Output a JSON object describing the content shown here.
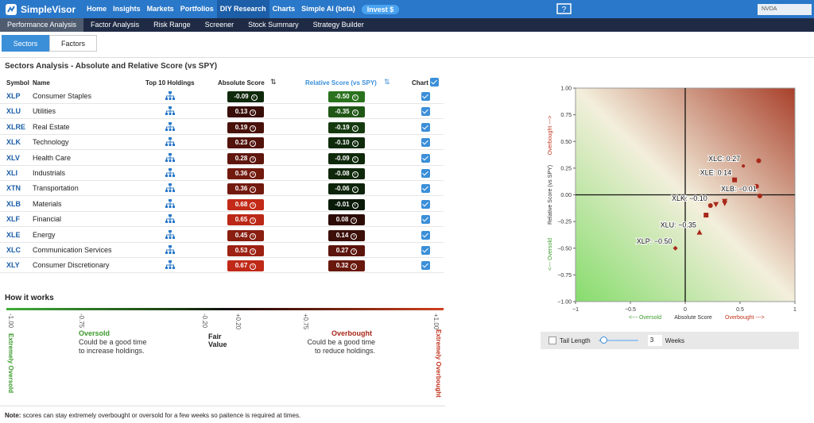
{
  "nav": {
    "brand": "SimpleVisor",
    "items": [
      "Home",
      "Insights",
      "Markets",
      "Portfolios",
      "DIY Research",
      "Charts",
      "Simple AI (beta)"
    ],
    "invest": "Invest $",
    "search": "NVDA"
  },
  "subnav": [
    "Performance Analysis",
    "Factor Analysis",
    "Risk Range",
    "Screener",
    "Stock Summary",
    "Strategy Builder"
  ],
  "tabs": [
    "Sectors",
    "Factors"
  ],
  "section_title": "Sectors Analysis - Absolute and Relative Score (vs SPY)",
  "table": {
    "headers": [
      "Symbol",
      "Name",
      "Top 10 Holdings",
      "Absolute Score",
      "Relative Score (vs SPY)",
      "Chart"
    ],
    "rows": [
      [
        "XLP",
        "Consumer Staples",
        "-0.09",
        "-0.50"
      ],
      [
        "XLU",
        "Utilities",
        "0.13",
        "-0.35"
      ],
      [
        "XLRE",
        "Real Estate",
        "0.19",
        "-0.19"
      ],
      [
        "XLK",
        "Technology",
        "0.23",
        "-0.10"
      ],
      [
        "XLV",
        "Health Care",
        "0.28",
        "-0.09"
      ],
      [
        "XLI",
        "Industrials",
        "0.36",
        "-0.08"
      ],
      [
        "XTN",
        "Transportation",
        "0.36",
        "-0.06"
      ],
      [
        "XLB",
        "Materials",
        "0.68",
        "-0.01"
      ],
      [
        "XLF",
        "Financial",
        "0.65",
        "0.08"
      ],
      [
        "XLE",
        "Energy",
        "0.45",
        "0.14"
      ],
      [
        "XLC",
        "Communication Services",
        "0.53",
        "0.27"
      ],
      [
        "XLY",
        "Consumer Discretionary",
        "0.67",
        "0.32"
      ]
    ]
  },
  "how": {
    "title": "How it works",
    "ticks": [
      "-1.00",
      "-0.75",
      "-0.20",
      "+0.20",
      "+0.75",
      "+1.00"
    ],
    "extreme_low": "Extremely Oversold",
    "oversold": "Oversold",
    "oversold_text": "Could be a good time to increase holdings.",
    "fair": "Fair Value",
    "overbought": "Overbought",
    "overbought_text": "Could be a good time to reduce holdings.",
    "extreme_high": "Extremely Overbought"
  },
  "note": {
    "label": "Note:",
    "text": "scores can stay extremely overbought or oversold for a few weeks so paitence is required at times."
  },
  "chart_data": {
    "type": "scatter",
    "color": "#a8281a",
    "xlim": [
      -1,
      1
    ],
    "ylim": [
      -1,
      1
    ],
    "xticks": [
      {
        "value": -1,
        "label": "−1"
      },
      {
        "value": -0.5,
        "label": "−0.5"
      },
      0,
      {
        "value": 0.5,
        "label": "0.5"
      },
      1
    ],
    "yticks": [
      {
        "value": -1,
        "label": "−1.00"
      },
      {
        "value": -0.75,
        "label": "−0.75"
      },
      {
        "value": -0.5,
        "label": "−0.50"
      },
      {
        "value": -0.25,
        "label": "−0.25"
      },
      {
        "value": 0,
        "label": "0.00"
      },
      {
        "value": 0.25,
        "label": "0.25"
      },
      {
        "value": 0.5,
        "label": "0.50"
      },
      {
        "value": 0.75,
        "label": "0.75"
      },
      {
        "value": 1,
        "label": "1.00"
      }
    ],
    "x_label": "Absolute Score",
    "x_low": "<--- Oversold",
    "x_high": "Overbought --->",
    "y_label": "Relative Score (vs SPY)",
    "y_low": "<--- Oversold",
    "y_high": "Overbought --->",
    "x": [
      -0.09,
      0.13,
      0.19,
      0.23,
      0.28,
      0.36,
      0.36,
      0.68,
      0.65,
      0.45,
      0.53,
      0.67
    ],
    "values": [
      -0.5,
      -0.35,
      -0.19,
      -0.1,
      -0.09,
      -0.08,
      -0.06,
      -0.01,
      0.08,
      0.14,
      0.27,
      0.32
    ],
    "markers": [
      "diamond",
      "triangle-up",
      "square",
      "circle",
      "triangle-down",
      "triangle-down",
      "triangle-down",
      "circle",
      "circle",
      "square",
      "dot",
      "circle"
    ],
    "annotations": [
      {
        "text": "XLC: 0.27",
        "x": 0.53,
        "y": 0.27
      },
      {
        "text": "XLE: 0.14",
        "x": 0.45,
        "y": 0.14
      },
      {
        "text": "XLB: −0.01",
        "x": 0.68,
        "y": -0.01
      },
      {
        "text": "XLK: −0.10",
        "x": 0.23,
        "y": -0.1
      },
      {
        "text": "XLU: −0.35",
        "x": 0.13,
        "y": -0.35
      },
      {
        "text": "XLP: −0.50",
        "x": -0.09,
        "y": -0.5
      }
    ]
  },
  "tail": {
    "label": "Tail Length",
    "value": "3",
    "unit": "Weeks"
  }
}
